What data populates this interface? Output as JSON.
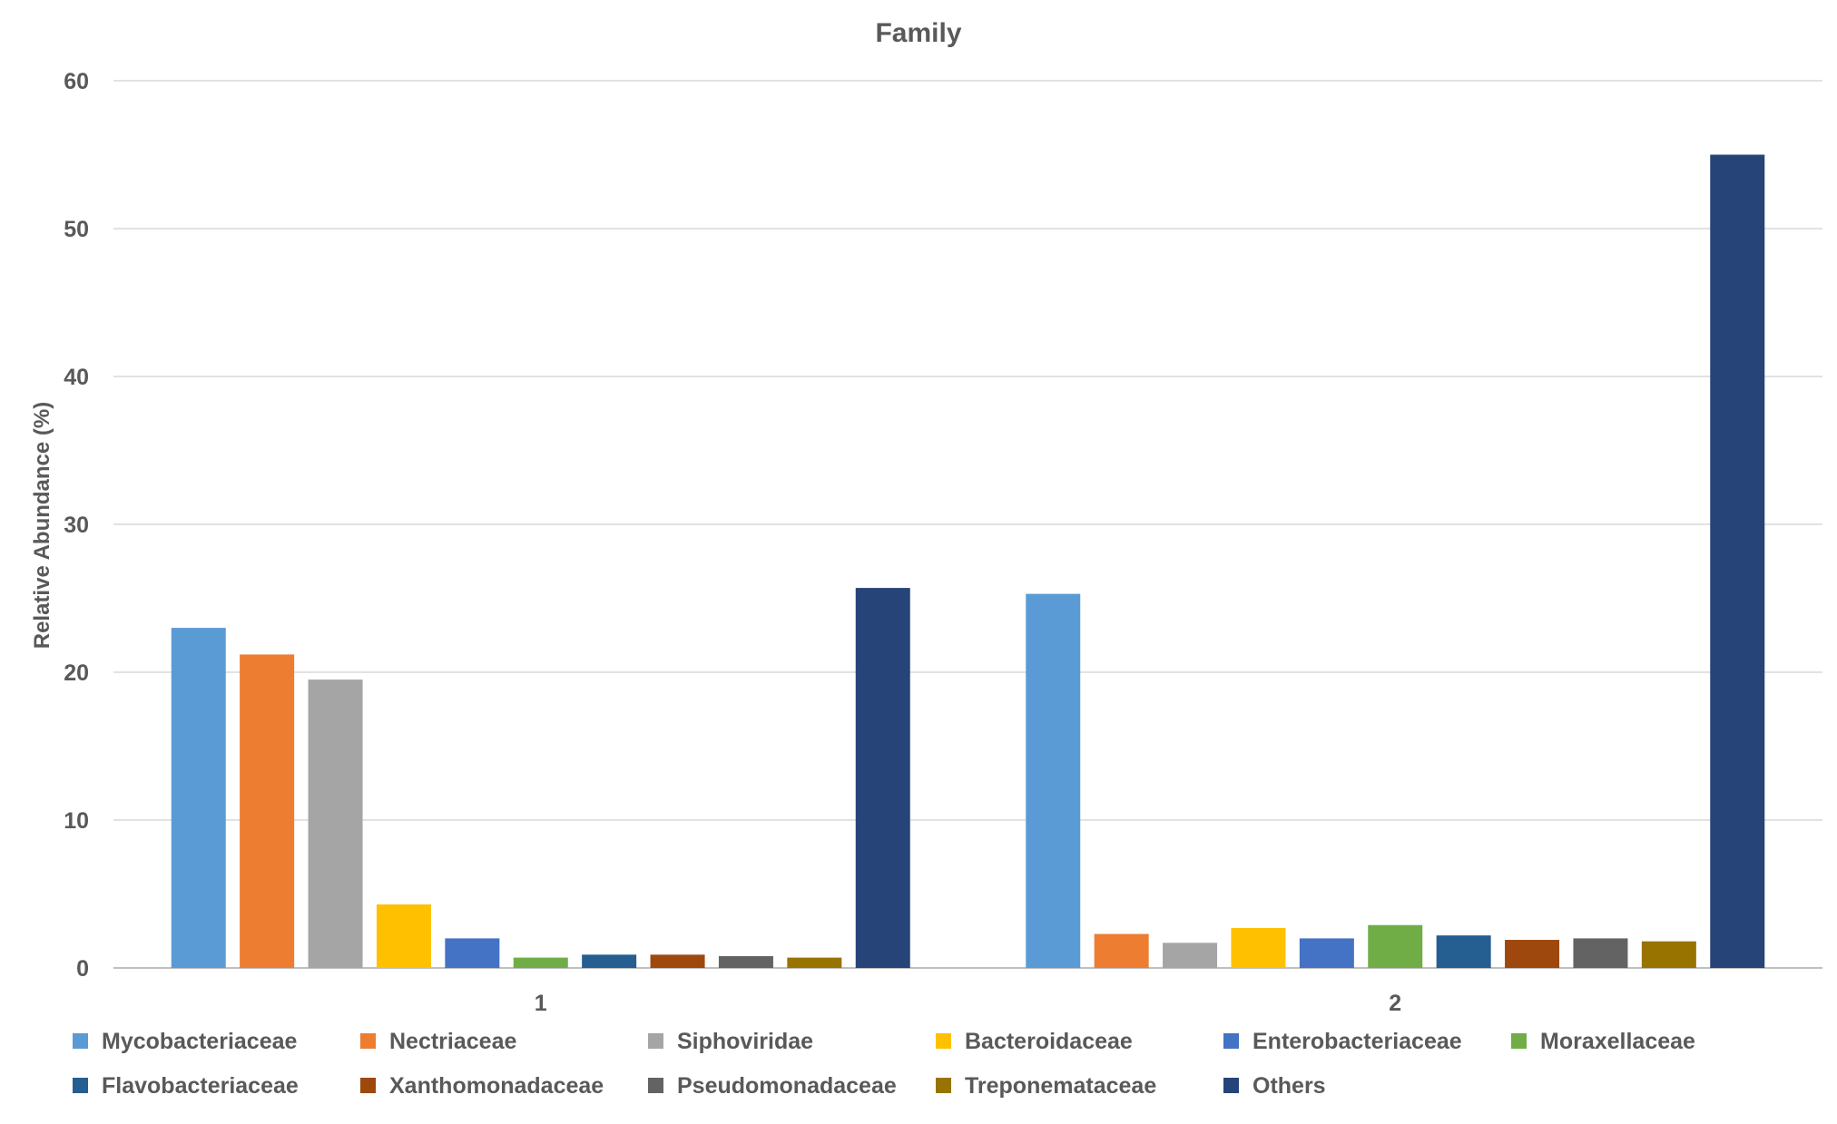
{
  "chart_data": {
    "type": "bar",
    "title": "Family",
    "xlabel": "",
    "ylabel": "Relative Abundance (%)",
    "ylim": [
      0,
      60
    ],
    "yticks": [
      0,
      10,
      20,
      30,
      40,
      50,
      60
    ],
    "grid": true,
    "legend_position": "bottom",
    "categories": [
      "1",
      "2"
    ],
    "series": [
      {
        "name": "Mycobacteriaceae",
        "color": "#5B9BD5",
        "values": [
          23.0,
          25.3
        ]
      },
      {
        "name": "Nectriaceae",
        "color": "#ED7D31",
        "values": [
          21.2,
          2.3
        ]
      },
      {
        "name": "Siphoviridae",
        "color": "#A5A5A5",
        "values": [
          19.5,
          1.7
        ]
      },
      {
        "name": "Bacteroidaceae",
        "color": "#FFC000",
        "values": [
          4.3,
          2.7
        ]
      },
      {
        "name": "Enterobacteriaceae",
        "color": "#4472C4",
        "values": [
          2.0,
          2.0
        ]
      },
      {
        "name": "Moraxellaceae",
        "color": "#70AD47",
        "values": [
          0.7,
          2.9
        ]
      },
      {
        "name": "Flavobacteriaceae",
        "color": "#255E91",
        "values": [
          0.9,
          2.2
        ]
      },
      {
        "name": "Xanthomonadaceae",
        "color": "#9E480E",
        "values": [
          0.9,
          1.9
        ]
      },
      {
        "name": "Pseudomonadaceae",
        "color": "#636363",
        "values": [
          0.8,
          2.0
        ]
      },
      {
        "name": "Treponemataceae",
        "color": "#997300",
        "values": [
          0.7,
          1.8
        ]
      },
      {
        "name": "Others",
        "color": "#264478",
        "values": [
          25.7,
          55.0
        ]
      }
    ]
  }
}
